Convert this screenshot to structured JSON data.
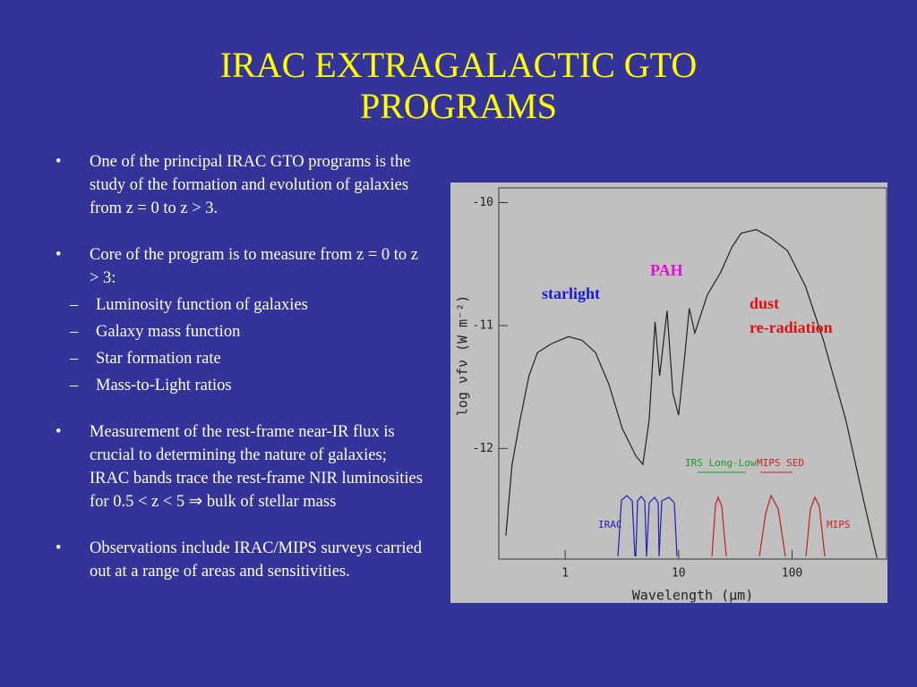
{
  "title": [
    "IRAC EXTRAGALACTIC GTO",
    "PROGRAMS"
  ],
  "bullets": [
    {
      "text": "One of the principal IRAC GTO programs is the study of the formation and evolution of galaxies from z = 0 to z > 3."
    },
    {
      "text": "Core of the program is to measure from z = 0 to z > 3:",
      "subitems": [
        "Luminosity function of galaxies",
        "Galaxy mass function",
        "Star formation rate",
        "Mass-to-Light ratios"
      ]
    },
    {
      "text": "Measurement of the rest-frame near-IR flux is crucial to determining the nature of galaxies; IRAC bands trace the rest-frame NIR luminosities for 0.5 < z < 5 ⇒ bulk of stellar mass"
    },
    {
      "text": "Observations include IRAC/MIPS surveys carried out at a range of areas and sensitivities."
    }
  ],
  "chart_data": {
    "type": "line",
    "xlabel": "Wavelength (μm)",
    "ylabel": "log νfν (W m⁻²)",
    "xscale": "log",
    "xlim": [
      0.26,
      680
    ],
    "xticks": [
      1,
      10,
      100
    ],
    "ylim": [
      -12.9,
      -9.88
    ],
    "yticks": [
      -10,
      -11,
      -12
    ],
    "series": [
      {
        "color": "#222222",
        "x": [
          0.3,
          0.34,
          0.4,
          0.48,
          0.57,
          0.75,
          1.07,
          1.41,
          1.85,
          2.43,
          3.19,
          4.19,
          4.84,
          5.5,
          6.2,
          6.8,
          7.9,
          8.9,
          10,
          11.3,
          12.4,
          13.9,
          17.9,
          23.4,
          29.6,
          35.5,
          48.4,
          63.6,
          91,
          131,
          189,
          298,
          426,
          560
        ],
        "values": [
          -12.71,
          -12.13,
          -11.77,
          -11.41,
          -11.22,
          -11.15,
          -11.09,
          -11.12,
          -11.22,
          -11.48,
          -11.84,
          -12.06,
          -12.13,
          -11.77,
          -10.97,
          -11.41,
          -10.88,
          -11.55,
          -11.73,
          -11.26,
          -10.86,
          -11.06,
          -10.75,
          -10.57,
          -10.36,
          -10.25,
          -10.22,
          -10.28,
          -10.39,
          -10.68,
          -11.12,
          -11.77,
          -12.42,
          -12.89
        ]
      }
    ],
    "annotations": [
      {
        "text": "starlight",
        "color": "#1a1ad6"
      },
      {
        "text": "PAH",
        "color": "#e010d0"
      },
      {
        "text": "dust",
        "color": "#e01010"
      },
      {
        "text": "re-radiation",
        "color": "#e01010"
      },
      {
        "text": "IRS Long-Low",
        "color": "#10a020"
      },
      {
        "text": "MIPS SED",
        "color": "#d02020"
      },
      {
        "text": "IRAC",
        "color": "#2020b0"
      },
      {
        "text": "MIPS",
        "color": "#d02020"
      }
    ]
  }
}
